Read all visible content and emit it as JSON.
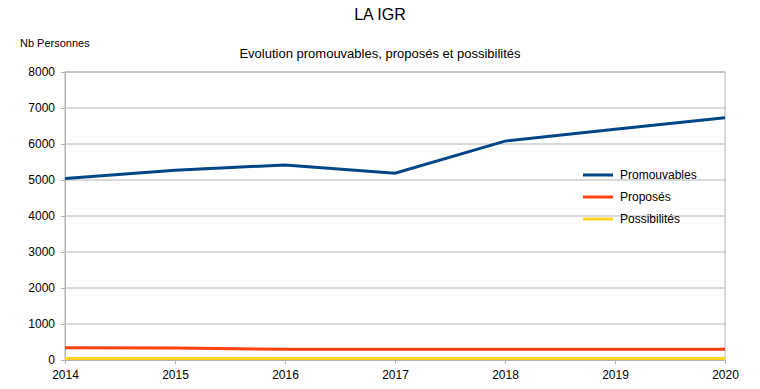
{
  "chart_data": {
    "type": "line",
    "title": "LA IGR",
    "subtitle": "Evolution promouvables, proposés et possibilités",
    "y_label": "Nb Personnes",
    "x": [
      2014,
      2015,
      2016,
      2017,
      2018,
      2019,
      2020
    ],
    "series": [
      {
        "name": "Promouvables",
        "color": "#004586",
        "values": [
          5040,
          5270,
          5420,
          5190,
          6080,
          6410,
          6730
        ]
      },
      {
        "name": "Proposés",
        "color": "#ff420e",
        "values": [
          340,
          330,
          300,
          300,
          300,
          300,
          300
        ]
      },
      {
        "name": "Possibilités",
        "color": "#ffd320",
        "values": [
          40,
          40,
          40,
          40,
          40,
          40,
          40
        ]
      }
    ],
    "xlim": [
      2014,
      2020
    ],
    "xticks": [
      2014,
      2015,
      2016,
      2017,
      2018,
      2019,
      2020
    ],
    "ylim": [
      0,
      8000
    ],
    "yticks": [
      0,
      1000,
      2000,
      3000,
      4000,
      5000,
      6000,
      7000,
      8000
    ],
    "grid": true,
    "legend": "right"
  }
}
